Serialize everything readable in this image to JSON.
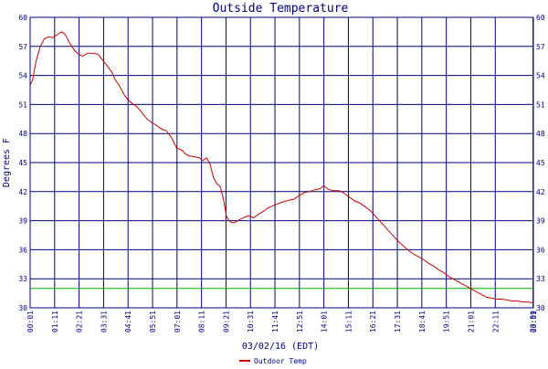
{
  "chart_data": {
    "type": "line",
    "title": "Outside Temperature",
    "xlabel": "03/02/16 (EDT)",
    "ylabel": "Degrees F",
    "ylim": [
      30,
      60
    ],
    "yticks": [
      30,
      33,
      36,
      39,
      42,
      45,
      48,
      51,
      54,
      57,
      60
    ],
    "xlim": [
      1,
      1440
    ],
    "x_unit": "minutes after midnight",
    "xticks": [
      {
        "t": 1,
        "label": "00:01"
      },
      {
        "t": 71,
        "label": "01:11"
      },
      {
        "t": 141,
        "label": "02:21"
      },
      {
        "t": 211,
        "label": "03:31"
      },
      {
        "t": 281,
        "label": "04:41"
      },
      {
        "t": 351,
        "label": "05:51"
      },
      {
        "t": 421,
        "label": "07:01"
      },
      {
        "t": 491,
        "label": "08:11"
      },
      {
        "t": 561,
        "label": "09:21"
      },
      {
        "t": 631,
        "label": "10:31"
      },
      {
        "t": 701,
        "label": "11:41"
      },
      {
        "t": 771,
        "label": "12:51"
      },
      {
        "t": 841,
        "label": "14:01"
      },
      {
        "t": 911,
        "label": "15:11"
      },
      {
        "t": 981,
        "label": "16:21"
      },
      {
        "t": 1051,
        "label": "17:31"
      },
      {
        "t": 1121,
        "label": "18:41"
      },
      {
        "t": 1191,
        "label": "19:51"
      },
      {
        "t": 1261,
        "label": "21:01"
      },
      {
        "t": 1331,
        "label": "22:11"
      },
      {
        "t": 1439,
        "label": "23:59"
      },
      {
        "t": 1440,
        "label": "00:01"
      }
    ],
    "reference_line": {
      "y": 32,
      "color": "#00b000"
    },
    "series": [
      {
        "name": "Outdoor Temp",
        "color": "#cc0000",
        "x": [
          1,
          8,
          18,
          30,
          42,
          55,
          65,
          78,
          90,
          100,
          112,
          120,
          130,
          140,
          152,
          165,
          180,
          195,
          210,
          225,
          235,
          245,
          255,
          270,
          280,
          290,
          305,
          320,
          335,
          350,
          360,
          375,
          390,
          405,
          420,
          428,
          438,
          445,
          455,
          470,
          485,
          495,
          505,
          515,
          525,
          535,
          545,
          555,
          562,
          570,
          578,
          585,
          595,
          610,
          625,
          640,
          655,
          670,
          680,
          700,
          720,
          740,
          755,
          770,
          785,
          800,
          815,
          830,
          840,
          855,
          870,
          885,
          900,
          915,
          930,
          945,
          960,
          975,
          990,
          1005,
          1020,
          1035,
          1050,
          1065,
          1080,
          1095,
          1110,
          1125,
          1140,
          1155,
          1170,
          1185,
          1200,
          1215,
          1230,
          1245,
          1260,
          1275,
          1290,
          1305,
          1320,
          1335,
          1350,
          1365,
          1380,
          1395,
          1410,
          1425,
          1440
        ],
        "values": [
          53.0,
          53.5,
          55.5,
          57.0,
          57.8,
          58.0,
          57.9,
          58.2,
          58.5,
          58.3,
          57.5,
          57.0,
          56.5,
          56.2,
          56.0,
          56.3,
          56.3,
          56.2,
          55.5,
          54.8,
          54.3,
          53.5,
          53.0,
          52.0,
          51.5,
          51.2,
          50.8,
          50.2,
          49.5,
          49.1,
          48.9,
          48.5,
          48.3,
          47.6,
          46.5,
          46.4,
          46.2,
          45.9,
          45.7,
          45.6,
          45.5,
          45.2,
          45.5,
          44.9,
          43.5,
          42.8,
          42.5,
          41.0,
          39.5,
          39.0,
          38.8,
          38.8,
          39.0,
          39.3,
          39.5,
          39.3,
          39.7,
          40.0,
          40.3,
          40.6,
          40.9,
          41.1,
          41.2,
          41.6,
          41.9,
          42.0,
          42.2,
          42.3,
          42.6,
          42.2,
          42.1,
          42.1,
          41.8,
          41.4,
          41.0,
          40.8,
          40.4,
          40.0,
          39.4,
          38.8,
          38.2,
          37.6,
          37.0,
          36.5,
          36.0,
          35.6,
          35.3,
          35.0,
          34.6,
          34.3,
          33.9,
          33.6,
          33.2,
          32.9,
          32.6,
          32.3,
          32.0,
          31.7,
          31.4,
          31.1,
          31.0,
          30.9,
          30.9,
          30.8,
          30.7,
          30.7,
          30.6,
          30.6,
          30.5
        ]
      }
    ],
    "legend": {
      "position": "bottom-center",
      "entries": [
        "Outdoor Temp"
      ]
    },
    "grid": true
  }
}
